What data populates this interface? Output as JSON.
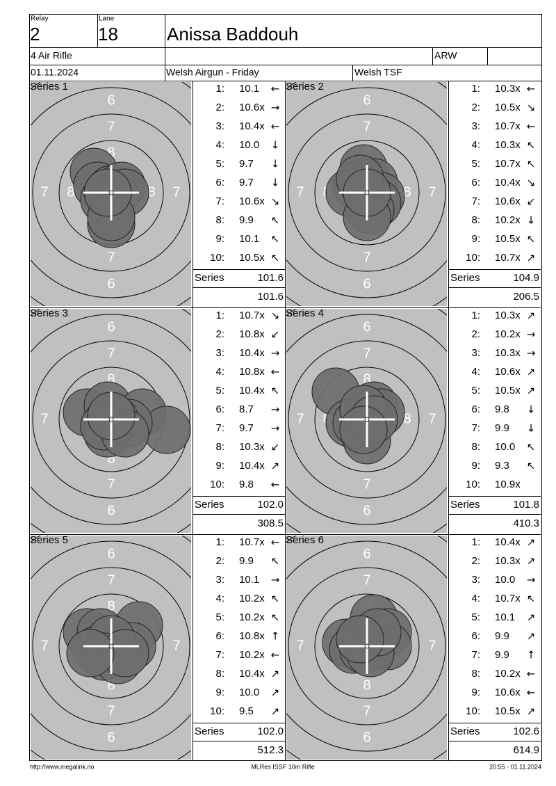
{
  "header": {
    "relay_label": "Relay",
    "relay": "2",
    "lane_label": "Lane",
    "lane": "18",
    "name": "Anissa Baddouh",
    "event": "4 Air Rifle",
    "club": "ARW",
    "date": "01.11.2024",
    "competition": "Welsh Airgun - Friday",
    "venue": "Welsh TSF"
  },
  "target_labels": [
    "6",
    "7",
    "8"
  ],
  "series": [
    {
      "title": "Series 1",
      "total_label": "Series",
      "total": "101.6",
      "cumulative": "101.6",
      "shots": [
        {
          "n": "1:",
          "score": "10.1",
          "dir": "←"
        },
        {
          "n": "2:",
          "score": "10.6x",
          "dir": "→"
        },
        {
          "n": "3:",
          "score": "10.4x",
          "dir": "←"
        },
        {
          "n": "4:",
          "score": "10.0",
          "dir": "↓"
        },
        {
          "n": "5:",
          "score": "9.7",
          "dir": "↓"
        },
        {
          "n": "6:",
          "score": "9.7",
          "dir": "↓"
        },
        {
          "n": "7:",
          "score": "10.6x",
          "dir": "↘"
        },
        {
          "n": "8:",
          "score": "9.9",
          "dir": "↖"
        },
        {
          "n": "9:",
          "score": "10.1",
          "dir": "↖"
        },
        {
          "n": "10:",
          "score": "10.5x",
          "dir": "↖"
        }
      ]
    },
    {
      "title": "Series 2",
      "total_label": "Series",
      "total": "104.9",
      "cumulative": "206.5",
      "shots": [
        {
          "n": "1:",
          "score": "10.3x",
          "dir": "←"
        },
        {
          "n": "2:",
          "score": "10.5x",
          "dir": "↘"
        },
        {
          "n": "3:",
          "score": "10.7x",
          "dir": "←"
        },
        {
          "n": "4:",
          "score": "10.3x",
          "dir": "↖"
        },
        {
          "n": "5:",
          "score": "10.7x",
          "dir": "↖"
        },
        {
          "n": "6:",
          "score": "10.4x",
          "dir": "↘"
        },
        {
          "n": "7:",
          "score": "10.6x",
          "dir": "↙"
        },
        {
          "n": "8:",
          "score": "10.2x",
          "dir": "↓"
        },
        {
          "n": "9:",
          "score": "10.5x",
          "dir": "↖"
        },
        {
          "n": "10:",
          "score": "10.7x",
          "dir": "↗"
        }
      ]
    },
    {
      "title": "Series 3",
      "total_label": "Series",
      "total": "102.0",
      "cumulative": "308.5",
      "shots": [
        {
          "n": "1:",
          "score": "10.7x",
          "dir": "↘"
        },
        {
          "n": "2:",
          "score": "10.8x",
          "dir": "↙"
        },
        {
          "n": "3:",
          "score": "10.4x",
          "dir": "→"
        },
        {
          "n": "4:",
          "score": "10.8x",
          "dir": "←"
        },
        {
          "n": "5:",
          "score": "10.4x",
          "dir": "↖"
        },
        {
          "n": "6:",
          "score": "8.7",
          "dir": "→"
        },
        {
          "n": "7:",
          "score": "9.7",
          "dir": "→"
        },
        {
          "n": "8:",
          "score": "10.3x",
          "dir": "↙"
        },
        {
          "n": "9:",
          "score": "10.4x",
          "dir": "↗"
        },
        {
          "n": "10:",
          "score": "9.8",
          "dir": "←"
        }
      ]
    },
    {
      "title": "Series 4",
      "total_label": "Series",
      "total": "101.8",
      "cumulative": "410.3",
      "shots": [
        {
          "n": "1:",
          "score": "10.3x",
          "dir": "↗"
        },
        {
          "n": "2:",
          "score": "10.2x",
          "dir": "→"
        },
        {
          "n": "3:",
          "score": "10.3x",
          "dir": "→"
        },
        {
          "n": "4:",
          "score": "10.6x",
          "dir": "↗"
        },
        {
          "n": "5:",
          "score": "10.5x",
          "dir": "↗"
        },
        {
          "n": "6:",
          "score": "9.8",
          "dir": "↓"
        },
        {
          "n": "7:",
          "score": "9.9",
          "dir": "↓"
        },
        {
          "n": "8:",
          "score": "10.0",
          "dir": "↖"
        },
        {
          "n": "9:",
          "score": "9.3",
          "dir": "↖"
        },
        {
          "n": "10:",
          "score": "10.9x"
        }
      ]
    },
    {
      "title": "Series 5",
      "total_label": "Series",
      "total": "102.0",
      "cumulative": "512.3",
      "shots": [
        {
          "n": "1:",
          "score": "10.7x",
          "dir": "←"
        },
        {
          "n": "2:",
          "score": "9.9",
          "dir": "↖"
        },
        {
          "n": "3:",
          "score": "10.1",
          "dir": "→"
        },
        {
          "n": "4:",
          "score": "10.2x",
          "dir": "↖"
        },
        {
          "n": "5:",
          "score": "10.2x",
          "dir": "↖"
        },
        {
          "n": "6:",
          "score": "10.8x",
          "dir": "↑"
        },
        {
          "n": "7:",
          "score": "10.2x",
          "dir": "←"
        },
        {
          "n": "8:",
          "score": "10.4x",
          "dir": "↗"
        },
        {
          "n": "9:",
          "score": "10.0",
          "dir": "↗"
        },
        {
          "n": "10:",
          "score": "9.5",
          "dir": "↗"
        }
      ]
    },
    {
      "title": "Series 6",
      "total_label": "Series",
      "total": "102.6",
      "cumulative": "614.9",
      "shots": [
        {
          "n": "1:",
          "score": "10.4x",
          "dir": "↗"
        },
        {
          "n": "2:",
          "score": "10.3x",
          "dir": "↗"
        },
        {
          "n": "3:",
          "score": "10.0",
          "dir": "→"
        },
        {
          "n": "4:",
          "score": "10.7x",
          "dir": "↖"
        },
        {
          "n": "5:",
          "score": "10.1",
          "dir": "↗"
        },
        {
          "n": "6:",
          "score": "9.9",
          "dir": "↗"
        },
        {
          "n": "7:",
          "score": "9.9",
          "dir": "↑"
        },
        {
          "n": "8:",
          "score": "10.2x",
          "dir": "←"
        },
        {
          "n": "9:",
          "score": "10.6x",
          "dir": "←"
        },
        {
          "n": "10:",
          "score": "10.5x",
          "dir": "↗"
        }
      ]
    }
  ],
  "footer": {
    "url": "http://www.megalink.no",
    "software": "MLRes ISSF 10m Rifle",
    "printed": "20:55 - 01.11.2024"
  }
}
